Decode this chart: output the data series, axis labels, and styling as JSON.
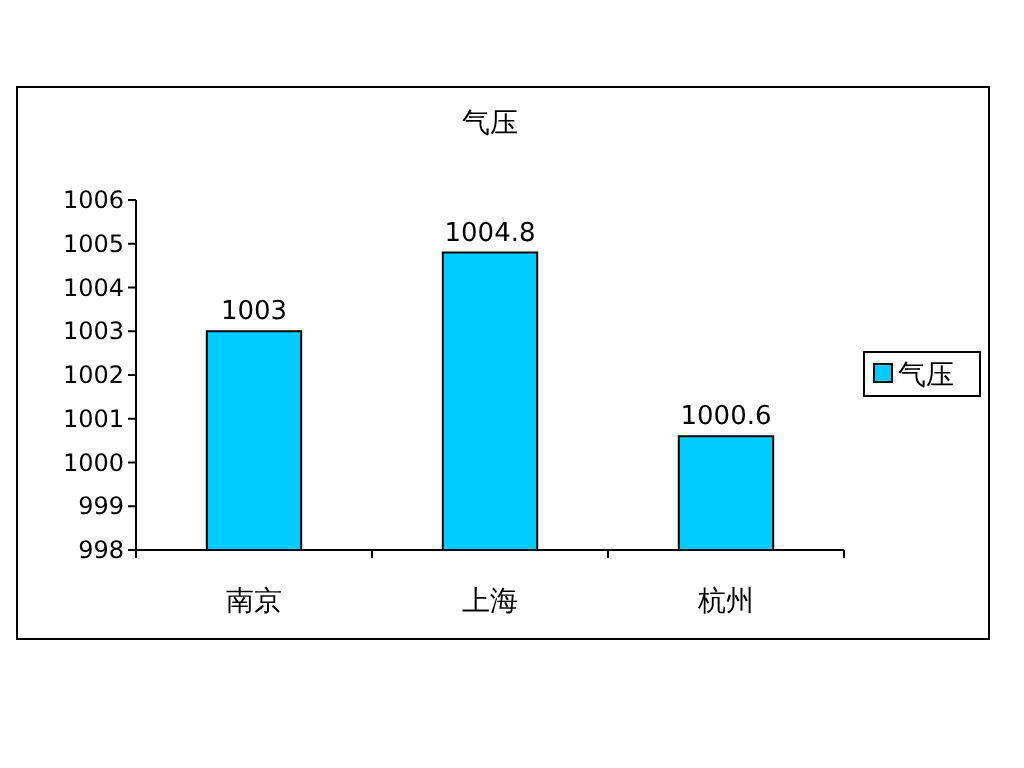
{
  "chart_data": {
    "type": "bar",
    "title": "气压",
    "categories": [
      "南京",
      "上海",
      "杭州"
    ],
    "series": [
      {
        "name": "气压",
        "color": "#00ccff",
        "values": [
          1003,
          1004.8,
          1000.6
        ]
      }
    ],
    "ylim": [
      998,
      1006
    ],
    "yticks": [
      998,
      999,
      1000,
      1001,
      1002,
      1003,
      1004,
      1005,
      1006
    ],
    "data_labels": true,
    "grid": false,
    "legend": "right"
  }
}
